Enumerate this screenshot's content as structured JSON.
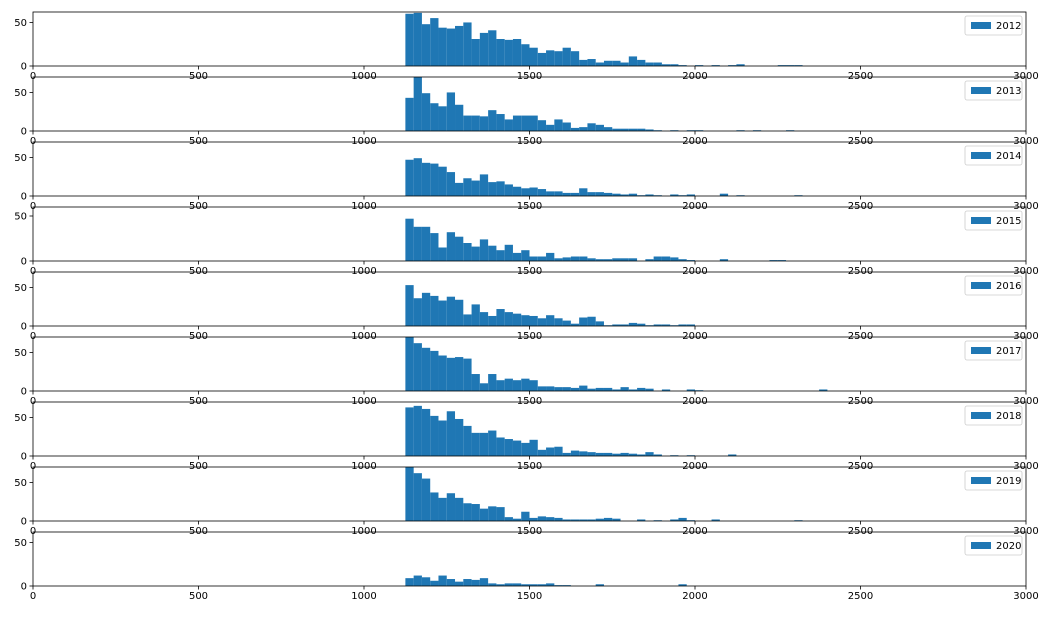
{
  "chart_data": {
    "type": "bar",
    "subplot_type": "histogram-stack",
    "x_range": [
      0,
      3000
    ],
    "x_ticks": [
      0,
      500,
      1000,
      1500,
      2000,
      2500,
      3000
    ],
    "y_ticks": [
      0,
      50
    ],
    "legend_position": "upper right",
    "grid": false,
    "bar_color": "#1f77b4",
    "bin_width": 25,
    "panels": [
      {
        "name": "2012",
        "ymax": 62,
        "bins": [
          [
            1125,
            60
          ],
          [
            1150,
            61
          ],
          [
            1175,
            48
          ],
          [
            1200,
            55
          ],
          [
            1225,
            44
          ],
          [
            1250,
            43
          ],
          [
            1275,
            46
          ],
          [
            1300,
            50
          ],
          [
            1325,
            31
          ],
          [
            1350,
            38
          ],
          [
            1375,
            41
          ],
          [
            1400,
            31
          ],
          [
            1425,
            30
          ],
          [
            1450,
            31
          ],
          [
            1475,
            25
          ],
          [
            1500,
            21
          ],
          [
            1525,
            15
          ],
          [
            1550,
            18
          ],
          [
            1575,
            17
          ],
          [
            1600,
            21
          ],
          [
            1625,
            17
          ],
          [
            1650,
            7
          ],
          [
            1675,
            8
          ],
          [
            1700,
            4
          ],
          [
            1725,
            6
          ],
          [
            1750,
            6
          ],
          [
            1775,
            4
          ],
          [
            1800,
            11
          ],
          [
            1825,
            7
          ],
          [
            1850,
            4
          ],
          [
            1875,
            4
          ],
          [
            1900,
            2
          ],
          [
            1925,
            2
          ],
          [
            1950,
            1
          ],
          [
            2000,
            1
          ],
          [
            2050,
            1
          ],
          [
            2100,
            1
          ],
          [
            2125,
            2
          ],
          [
            2250,
            1
          ],
          [
            2275,
            1
          ],
          [
            2300,
            1
          ]
        ]
      },
      {
        "name": "2013",
        "ymax": 70,
        "bins": [
          [
            1125,
            43
          ],
          [
            1150,
            70
          ],
          [
            1175,
            49
          ],
          [
            1200,
            36
          ],
          [
            1225,
            32
          ],
          [
            1250,
            50
          ],
          [
            1275,
            34
          ],
          [
            1300,
            20
          ],
          [
            1325,
            20
          ],
          [
            1350,
            19
          ],
          [
            1375,
            27
          ],
          [
            1400,
            22
          ],
          [
            1425,
            15
          ],
          [
            1450,
            20
          ],
          [
            1475,
            20
          ],
          [
            1500,
            20
          ],
          [
            1525,
            14
          ],
          [
            1550,
            8
          ],
          [
            1575,
            15
          ],
          [
            1600,
            11
          ],
          [
            1625,
            4
          ],
          [
            1650,
            5
          ],
          [
            1675,
            10
          ],
          [
            1700,
            8
          ],
          [
            1725,
            5
          ],
          [
            1750,
            3
          ],
          [
            1775,
            3
          ],
          [
            1800,
            3
          ],
          [
            1825,
            3
          ],
          [
            1850,
            2
          ],
          [
            1875,
            1
          ],
          [
            1925,
            1
          ],
          [
            1975,
            1
          ],
          [
            2000,
            1
          ],
          [
            2125,
            1
          ],
          [
            2175,
            1
          ],
          [
            2275,
            1
          ]
        ]
      },
      {
        "name": "2014",
        "ymax": 70,
        "bins": [
          [
            1125,
            47
          ],
          [
            1150,
            49
          ],
          [
            1175,
            43
          ],
          [
            1200,
            42
          ],
          [
            1225,
            38
          ],
          [
            1250,
            31
          ],
          [
            1275,
            17
          ],
          [
            1300,
            23
          ],
          [
            1325,
            20
          ],
          [
            1350,
            28
          ],
          [
            1375,
            18
          ],
          [
            1400,
            19
          ],
          [
            1425,
            15
          ],
          [
            1450,
            12
          ],
          [
            1475,
            10
          ],
          [
            1500,
            11
          ],
          [
            1525,
            9
          ],
          [
            1550,
            6
          ],
          [
            1575,
            6
          ],
          [
            1600,
            4
          ],
          [
            1625,
            4
          ],
          [
            1650,
            10
          ],
          [
            1675,
            5
          ],
          [
            1700,
            5
          ],
          [
            1725,
            4
          ],
          [
            1750,
            3
          ],
          [
            1775,
            2
          ],
          [
            1800,
            3
          ],
          [
            1825,
            1
          ],
          [
            1850,
            2
          ],
          [
            1875,
            1
          ],
          [
            1925,
            2
          ],
          [
            1950,
            1
          ],
          [
            1975,
            2
          ],
          [
            2075,
            3
          ],
          [
            2125,
            1
          ],
          [
            2300,
            1
          ]
        ]
      },
      {
        "name": "2015",
        "ymax": 60,
        "bins": [
          [
            1125,
            47
          ],
          [
            1150,
            38
          ],
          [
            1175,
            38
          ],
          [
            1200,
            31
          ],
          [
            1225,
            15
          ],
          [
            1250,
            32
          ],
          [
            1275,
            27
          ],
          [
            1300,
            20
          ],
          [
            1325,
            16
          ],
          [
            1350,
            24
          ],
          [
            1375,
            17
          ],
          [
            1400,
            12
          ],
          [
            1425,
            18
          ],
          [
            1450,
            9
          ],
          [
            1475,
            12
          ],
          [
            1500,
            5
          ],
          [
            1525,
            5
          ],
          [
            1550,
            9
          ],
          [
            1575,
            3
          ],
          [
            1600,
            4
          ],
          [
            1625,
            5
          ],
          [
            1650,
            5
          ],
          [
            1675,
            3
          ],
          [
            1700,
            2
          ],
          [
            1725,
            2
          ],
          [
            1750,
            3
          ],
          [
            1775,
            3
          ],
          [
            1800,
            3
          ],
          [
            1850,
            2
          ],
          [
            1875,
            5
          ],
          [
            1900,
            5
          ],
          [
            1925,
            4
          ],
          [
            1950,
            2
          ],
          [
            1975,
            1
          ],
          [
            2075,
            2
          ],
          [
            2225,
            1
          ],
          [
            2250,
            1
          ]
        ]
      },
      {
        "name": "2016",
        "ymax": 70,
        "bins": [
          [
            1125,
            53
          ],
          [
            1150,
            36
          ],
          [
            1175,
            43
          ],
          [
            1200,
            39
          ],
          [
            1225,
            33
          ],
          [
            1250,
            38
          ],
          [
            1275,
            34
          ],
          [
            1300,
            15
          ],
          [
            1325,
            28
          ],
          [
            1350,
            18
          ],
          [
            1375,
            13
          ],
          [
            1400,
            22
          ],
          [
            1425,
            18
          ],
          [
            1450,
            16
          ],
          [
            1475,
            14
          ],
          [
            1500,
            13
          ],
          [
            1525,
            10
          ],
          [
            1550,
            14
          ],
          [
            1575,
            10
          ],
          [
            1600,
            7
          ],
          [
            1625,
            3
          ],
          [
            1650,
            11
          ],
          [
            1675,
            12
          ],
          [
            1700,
            6
          ],
          [
            1725,
            1
          ],
          [
            1750,
            2
          ],
          [
            1775,
            2
          ],
          [
            1800,
            4
          ],
          [
            1825,
            3
          ],
          [
            1850,
            1
          ],
          [
            1875,
            2
          ],
          [
            1900,
            2
          ],
          [
            1925,
            1
          ],
          [
            1950,
            2
          ],
          [
            1975,
            2
          ]
        ]
      },
      {
        "name": "2017",
        "ymax": 70,
        "bins": [
          [
            1125,
            70
          ],
          [
            1150,
            62
          ],
          [
            1175,
            56
          ],
          [
            1200,
            52
          ],
          [
            1225,
            46
          ],
          [
            1250,
            43
          ],
          [
            1275,
            44
          ],
          [
            1300,
            42
          ],
          [
            1325,
            22
          ],
          [
            1350,
            10
          ],
          [
            1375,
            22
          ],
          [
            1400,
            14
          ],
          [
            1425,
            16
          ],
          [
            1450,
            14
          ],
          [
            1475,
            16
          ],
          [
            1500,
            14
          ],
          [
            1525,
            6
          ],
          [
            1550,
            6
          ],
          [
            1575,
            5
          ],
          [
            1600,
            5
          ],
          [
            1625,
            4
          ],
          [
            1650,
            7
          ],
          [
            1675,
            3
          ],
          [
            1700,
            4
          ],
          [
            1725,
            4
          ],
          [
            1750,
            2
          ],
          [
            1775,
            5
          ],
          [
            1800,
            2
          ],
          [
            1825,
            4
          ],
          [
            1850,
            3
          ],
          [
            1900,
            2
          ],
          [
            1975,
            2
          ],
          [
            2000,
            1
          ],
          [
            2375,
            2
          ]
        ]
      },
      {
        "name": "2018",
        "ymax": 70,
        "bins": [
          [
            1125,
            63
          ],
          [
            1150,
            65
          ],
          [
            1175,
            61
          ],
          [
            1200,
            52
          ],
          [
            1225,
            46
          ],
          [
            1250,
            58
          ],
          [
            1275,
            48
          ],
          [
            1300,
            39
          ],
          [
            1325,
            30
          ],
          [
            1350,
            30
          ],
          [
            1375,
            33
          ],
          [
            1400,
            24
          ],
          [
            1425,
            22
          ],
          [
            1450,
            20
          ],
          [
            1475,
            17
          ],
          [
            1500,
            21
          ],
          [
            1525,
            8
          ],
          [
            1550,
            11
          ],
          [
            1575,
            12
          ],
          [
            1600,
            4
          ],
          [
            1625,
            7
          ],
          [
            1650,
            6
          ],
          [
            1675,
            5
          ],
          [
            1700,
            4
          ],
          [
            1725,
            4
          ],
          [
            1750,
            3
          ],
          [
            1775,
            4
          ],
          [
            1800,
            3
          ],
          [
            1825,
            2
          ],
          [
            1850,
            5
          ],
          [
            1875,
            2
          ],
          [
            1925,
            1
          ],
          [
            1975,
            1
          ],
          [
            2100,
            2
          ]
        ]
      },
      {
        "name": "2019",
        "ymax": 70,
        "bins": [
          [
            1125,
            70
          ],
          [
            1150,
            62
          ],
          [
            1175,
            55
          ],
          [
            1200,
            37
          ],
          [
            1225,
            30
          ],
          [
            1250,
            36
          ],
          [
            1275,
            30
          ],
          [
            1300,
            23
          ],
          [
            1325,
            22
          ],
          [
            1350,
            16
          ],
          [
            1375,
            19
          ],
          [
            1400,
            18
          ],
          [
            1425,
            5
          ],
          [
            1450,
            3
          ],
          [
            1475,
            12
          ],
          [
            1500,
            4
          ],
          [
            1525,
            6
          ],
          [
            1550,
            5
          ],
          [
            1575,
            4
          ],
          [
            1600,
            2
          ],
          [
            1625,
            2
          ],
          [
            1650,
            2
          ],
          [
            1675,
            2
          ],
          [
            1700,
            3
          ],
          [
            1725,
            4
          ],
          [
            1750,
            3
          ],
          [
            1825,
            2
          ],
          [
            1875,
            1
          ],
          [
            1925,
            2
          ],
          [
            1950,
            4
          ],
          [
            1975,
            1
          ],
          [
            2050,
            2
          ],
          [
            2300,
            1
          ]
        ]
      },
      {
        "name": "2020",
        "ymax": 62,
        "bins": [
          [
            1125,
            9
          ],
          [
            1150,
            12
          ],
          [
            1175,
            10
          ],
          [
            1200,
            6
          ],
          [
            1225,
            12
          ],
          [
            1250,
            8
          ],
          [
            1275,
            5
          ],
          [
            1300,
            8
          ],
          [
            1325,
            7
          ],
          [
            1350,
            9
          ],
          [
            1375,
            3
          ],
          [
            1400,
            2
          ],
          [
            1425,
            3
          ],
          [
            1450,
            3
          ],
          [
            1475,
            2
          ],
          [
            1500,
            2
          ],
          [
            1525,
            2
          ],
          [
            1550,
            3
          ],
          [
            1575,
            1
          ],
          [
            1600,
            1
          ],
          [
            1700,
            2
          ],
          [
            1950,
            2
          ]
        ]
      }
    ]
  }
}
